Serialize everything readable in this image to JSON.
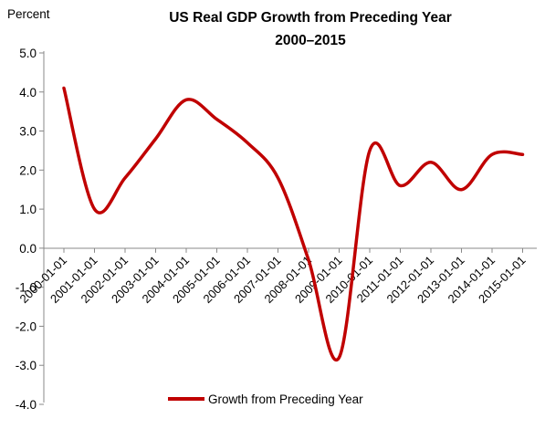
{
  "chart_data": {
    "type": "line",
    "title": "US Real GDP Growth from Preceding Year",
    "subtitle": "2000–2015",
    "ylabel": "Percent",
    "xlabel": "",
    "ylim": [
      -4.0,
      5.0
    ],
    "y_ticks": [
      "5.0",
      "4.0",
      "3.0",
      "2.0",
      "1.0",
      "0.0",
      "-1.0",
      "-2.0",
      "-3.0",
      "-4.0"
    ],
    "categories": [
      "2000-01-01",
      "2001-01-01",
      "2002-01-01",
      "2003-01-01",
      "2004-01-01",
      "2005-01-01",
      "2006-01-01",
      "2007-01-01",
      "2008-01-01",
      "2009-01-01",
      "2010-01-01",
      "2011-01-01",
      "2012-01-01",
      "2013-01-01",
      "2014-01-01",
      "2015-01-01"
    ],
    "grid": false,
    "legend_position": "bottom",
    "series": [
      {
        "name": "Growth from Preceding Year",
        "color": "#c00000",
        "values": [
          4.1,
          1.0,
          1.8,
          2.8,
          3.8,
          3.3,
          2.7,
          1.8,
          -0.3,
          -2.8,
          2.5,
          1.6,
          2.2,
          1.5,
          2.4,
          2.4
        ]
      }
    ]
  }
}
